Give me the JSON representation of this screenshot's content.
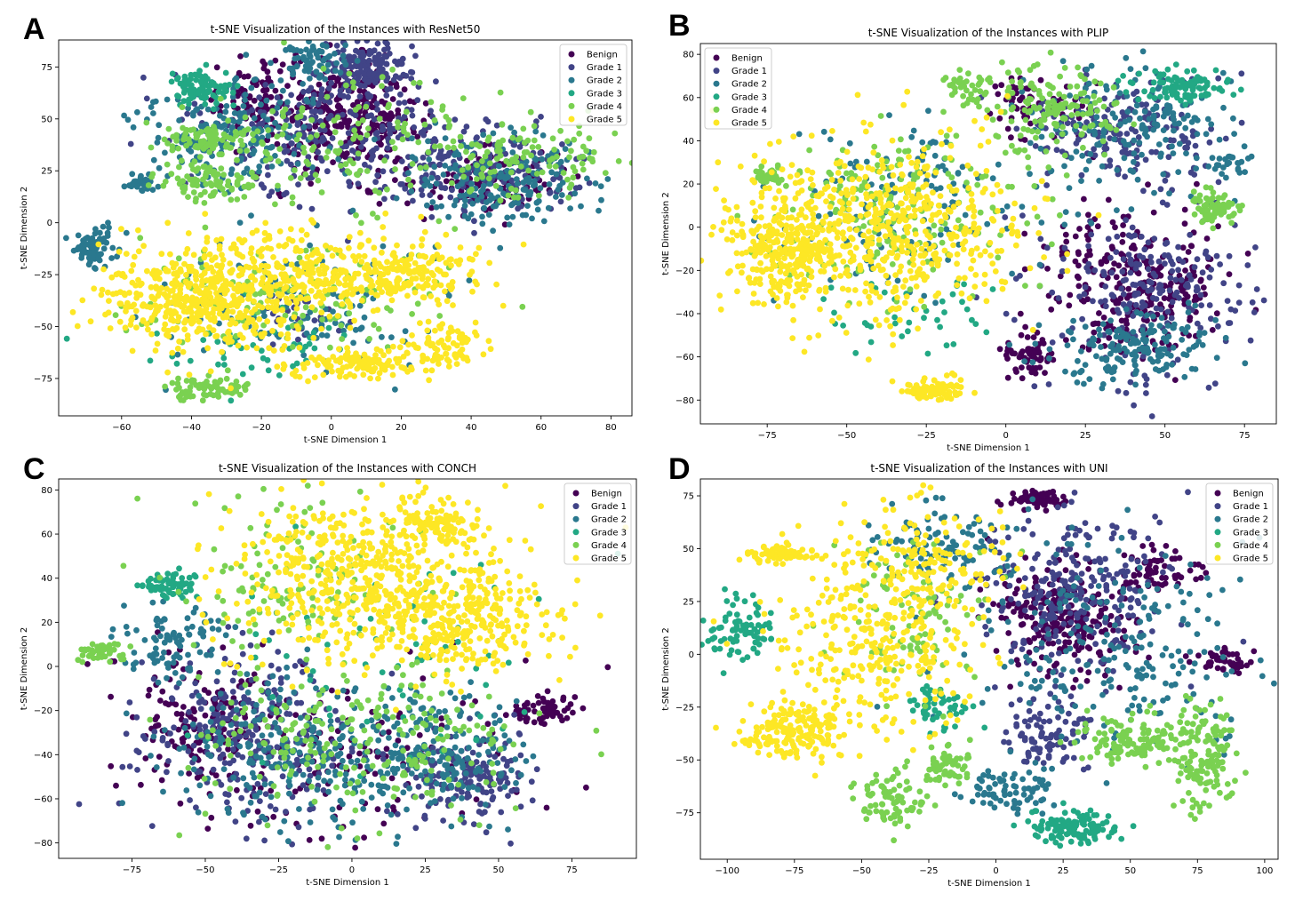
{
  "colors": {
    "Benign": "#440154",
    "Grade 1": "#414487",
    "Grade 2": "#2a788e",
    "Grade 3": "#22a884",
    "Grade 4": "#7ad151",
    "Grade 5": "#fde725"
  },
  "chart_data": [
    {
      "panel_label": "A",
      "type": "scatter",
      "title": "t-SNE Visualization of the Instances with ResNet50",
      "xlabel": "t-SNE Dimension 1",
      "ylabel": "t-SNE Dimension 2",
      "xlim": [
        -78,
        86
      ],
      "ylim": [
        -93,
        88
      ],
      "xticks": [
        -60,
        -40,
        -20,
        0,
        20,
        40,
        60,
        80
      ],
      "yticks": [
        -75,
        -50,
        -25,
        0,
        25,
        50,
        75
      ],
      "legend": [
        "Benign",
        "Grade 1",
        "Grade 2",
        "Grade 3",
        "Grade 4",
        "Grade 5"
      ],
      "legend_position": "top-right",
      "clusters": [
        {
          "series": "Benign",
          "cx": 5,
          "cy": 50,
          "sx": 10,
          "sy": 13,
          "n": 280
        },
        {
          "series": "Benign",
          "cx": -20,
          "cy": 60,
          "sx": 8,
          "sy": 10,
          "n": 90
        },
        {
          "series": "Benign",
          "cx": 45,
          "cy": 20,
          "sx": 10,
          "sy": 8,
          "n": 100
        },
        {
          "series": "Grade 1",
          "cx": 10,
          "cy": 75,
          "sx": 6,
          "sy": 6,
          "n": 150
        },
        {
          "series": "Grade 1",
          "cx": 0,
          "cy": 45,
          "sx": 18,
          "sy": 16,
          "n": 260
        },
        {
          "series": "Grade 1",
          "cx": 45,
          "cy": 25,
          "sx": 14,
          "sy": 10,
          "n": 180
        },
        {
          "series": "Grade 1",
          "cx": -10,
          "cy": -45,
          "sx": 6,
          "sy": 6,
          "n": 30
        },
        {
          "series": "Grade 2",
          "cx": -30,
          "cy": 45,
          "sx": 14,
          "sy": 14,
          "n": 200
        },
        {
          "series": "Grade 2",
          "cx": 50,
          "cy": 20,
          "sx": 14,
          "sy": 12,
          "n": 200
        },
        {
          "series": "Grade 2",
          "cx": -68,
          "cy": -12,
          "sx": 3,
          "sy": 5,
          "n": 70
        },
        {
          "series": "Grade 2",
          "cx": -5,
          "cy": 78,
          "sx": 5,
          "sy": 4,
          "n": 70
        },
        {
          "series": "Grade 2",
          "cx": -55,
          "cy": 19,
          "sx": 2,
          "sy": 2,
          "n": 25
        },
        {
          "series": "Grade 2",
          "cx": -10,
          "cy": -40,
          "sx": 20,
          "sy": 15,
          "n": 120
        },
        {
          "series": "Grade 3",
          "cx": -38,
          "cy": 65,
          "sx": 4,
          "sy": 4,
          "n": 90
        },
        {
          "series": "Grade 3",
          "cx": -20,
          "cy": -60,
          "sx": 15,
          "sy": 8,
          "n": 50
        },
        {
          "series": "Grade 4",
          "cx": -35,
          "cy": 40,
          "sx": 7,
          "sy": 4,
          "n": 90
        },
        {
          "series": "Grade 4",
          "cx": -35,
          "cy": 20,
          "sx": 8,
          "sy": 4,
          "n": 90
        },
        {
          "series": "Grade 4",
          "cx": 55,
          "cy": 30,
          "sx": 14,
          "sy": 10,
          "n": 120
        },
        {
          "series": "Grade 4",
          "cx": -35,
          "cy": -80,
          "sx": 6,
          "sy": 3,
          "n": 70
        },
        {
          "series": "Grade 4",
          "cx": 0,
          "cy": 40,
          "sx": 20,
          "sy": 15,
          "n": 130
        },
        {
          "series": "Grade 4",
          "cx": -10,
          "cy": -35,
          "sx": 22,
          "sy": 14,
          "n": 120
        },
        {
          "series": "Grade 5",
          "cx": -35,
          "cy": -35,
          "sx": 15,
          "sy": 13,
          "n": 520
        },
        {
          "series": "Grade 5",
          "cx": 0,
          "cy": -25,
          "sx": 18,
          "sy": 10,
          "n": 260
        },
        {
          "series": "Grade 5",
          "cx": 25,
          "cy": -25,
          "sx": 8,
          "sy": 6,
          "n": 110
        },
        {
          "series": "Grade 5",
          "cx": 10,
          "cy": -68,
          "sx": 10,
          "sy": 4,
          "n": 130
        },
        {
          "series": "Grade 5",
          "cx": 33,
          "cy": -60,
          "sx": 6,
          "sy": 5,
          "n": 80
        }
      ]
    },
    {
      "panel_label": "B",
      "type": "scatter",
      "title": "t-SNE Visualization of the Instances with PLIP",
      "xlabel": "t-SNE Dimension 1",
      "ylabel": "t-SNE Dimension 2",
      "xlim": [
        -96,
        85
      ],
      "ylim": [
        -91,
        85
      ],
      "xticks": [
        -75,
        -50,
        -25,
        0,
        25,
        50,
        75
      ],
      "yticks": [
        -80,
        -60,
        -40,
        -20,
        0,
        20,
        40,
        60,
        80
      ],
      "legend": [
        "Benign",
        "Grade 1",
        "Grade 2",
        "Grade 3",
        "Grade 4",
        "Grade 5"
      ],
      "legend_position": "top-left",
      "clusters": [
        {
          "series": "Benign",
          "cx": 40,
          "cy": -25,
          "sx": 14,
          "sy": 18,
          "n": 280
        },
        {
          "series": "Benign",
          "cx": 8,
          "cy": -60,
          "sx": 4,
          "sy": 5,
          "n": 60
        },
        {
          "series": "Benign",
          "cx": 10,
          "cy": 55,
          "sx": 8,
          "sy": 8,
          "n": 60
        },
        {
          "series": "Grade 1",
          "cx": 45,
          "cy": -30,
          "sx": 16,
          "sy": 20,
          "n": 230
        },
        {
          "series": "Grade 1",
          "cx": 35,
          "cy": 45,
          "sx": 14,
          "sy": 12,
          "n": 180
        },
        {
          "series": "Grade 2",
          "cx": 40,
          "cy": -55,
          "sx": 15,
          "sy": 8,
          "n": 170
        },
        {
          "series": "Grade 2",
          "cx": 40,
          "cy": 45,
          "sx": 16,
          "sy": 14,
          "n": 180
        },
        {
          "series": "Grade 2",
          "cx": -30,
          "cy": 10,
          "sx": 20,
          "sy": 20,
          "n": 150
        },
        {
          "series": "Grade 2",
          "cx": 70,
          "cy": 27,
          "sx": 3,
          "sy": 3,
          "n": 25
        },
        {
          "series": "Grade 3",
          "cx": 55,
          "cy": 65,
          "sx": 8,
          "sy": 4,
          "n": 100
        },
        {
          "series": "Grade 3",
          "cx": -30,
          "cy": -40,
          "sx": 15,
          "sy": 10,
          "n": 40
        },
        {
          "series": "Grade 4",
          "cx": 15,
          "cy": 55,
          "sx": 10,
          "sy": 10,
          "n": 150
        },
        {
          "series": "Grade 4",
          "cx": -12,
          "cy": 65,
          "sx": 4,
          "sy": 4,
          "n": 40
        },
        {
          "series": "Grade 4",
          "cx": 65,
          "cy": 10,
          "sx": 4,
          "sy": 4,
          "n": 70
        },
        {
          "series": "Grade 4",
          "cx": -75,
          "cy": 23,
          "sx": 3,
          "sy": 2,
          "n": 40
        },
        {
          "series": "Grade 4",
          "cx": -35,
          "cy": 10,
          "sx": 20,
          "sy": 20,
          "n": 200
        },
        {
          "series": "Grade 5",
          "cx": -40,
          "cy": 0,
          "sx": 22,
          "sy": 20,
          "n": 600
        },
        {
          "series": "Grade 5",
          "cx": -70,
          "cy": -10,
          "sx": 8,
          "sy": 12,
          "n": 220
        },
        {
          "series": "Grade 5",
          "cx": -22,
          "cy": -75,
          "sx": 5,
          "sy": 3,
          "n": 80
        }
      ]
    },
    {
      "panel_label": "C",
      "type": "scatter",
      "title": "t-SNE Visualization of the Instances with CONCH",
      "xlabel": "t-SNE Dimension 1",
      "ylabel": "t-SNE Dimension 2",
      "xlim": [
        -100,
        97
      ],
      "ylim": [
        -87,
        85
      ],
      "xticks": [
        -75,
        -50,
        -25,
        0,
        25,
        50,
        75
      ],
      "yticks": [
        -80,
        -60,
        -40,
        -20,
        0,
        20,
        40,
        60,
        80
      ],
      "legend": [
        "Benign",
        "Grade 1",
        "Grade 2",
        "Grade 3",
        "Grade 4",
        "Grade 5"
      ],
      "legend_position": "top-right",
      "clusters": [
        {
          "series": "Benign",
          "cx": -50,
          "cy": -25,
          "sx": 14,
          "sy": 15,
          "n": 160
        },
        {
          "series": "Benign",
          "cx": 65,
          "cy": -20,
          "sx": 6,
          "sy": 4,
          "n": 60
        },
        {
          "series": "Benign",
          "cx": 0,
          "cy": -45,
          "sx": 30,
          "sy": 20,
          "n": 130
        },
        {
          "series": "Grade 1",
          "cx": -35,
          "cy": -30,
          "sx": 18,
          "sy": 18,
          "n": 280
        },
        {
          "series": "Grade 1",
          "cx": 40,
          "cy": -50,
          "sx": 10,
          "sy": 10,
          "n": 160
        },
        {
          "series": "Grade 2",
          "cx": -20,
          "cy": -40,
          "sx": 22,
          "sy": 18,
          "n": 230
        },
        {
          "series": "Grade 2",
          "cx": 30,
          "cy": -40,
          "sx": 16,
          "sy": 15,
          "n": 200
        },
        {
          "series": "Grade 2",
          "cx": -60,
          "cy": 10,
          "sx": 10,
          "sy": 8,
          "n": 90
        },
        {
          "series": "Grade 3",
          "cx": -62,
          "cy": 37,
          "sx": 5,
          "sy": 3,
          "n": 70
        },
        {
          "series": "Grade 3",
          "cx": 10,
          "cy": 0,
          "sx": 30,
          "sy": 25,
          "n": 70
        },
        {
          "series": "Grade 4",
          "cx": -85,
          "cy": 7,
          "sx": 4,
          "sy": 2,
          "n": 50
        },
        {
          "series": "Grade 4",
          "cx": 0,
          "cy": -35,
          "sx": 30,
          "sy": 18,
          "n": 230
        },
        {
          "series": "Grade 4",
          "cx": -20,
          "cy": 40,
          "sx": 20,
          "sy": 20,
          "n": 130
        },
        {
          "series": "Grade 5",
          "cx": 5,
          "cy": 40,
          "sx": 22,
          "sy": 18,
          "n": 560
        },
        {
          "series": "Grade 5",
          "cx": 40,
          "cy": 20,
          "sx": 14,
          "sy": 12,
          "n": 250
        },
        {
          "series": "Grade 5",
          "cx": 30,
          "cy": 63,
          "sx": 8,
          "sy": 4,
          "n": 80
        }
      ]
    },
    {
      "panel_label": "D",
      "type": "scatter",
      "title": "t-SNE Visualization of the Instances with UNI",
      "xlabel": "t-SNE Dimension 1",
      "ylabel": "t-SNE Dimension 2",
      "xlim": [
        -110,
        105
      ],
      "ylim": [
        -97,
        83
      ],
      "xticks": [
        -100,
        -75,
        -50,
        -25,
        0,
        25,
        50,
        75,
        100
      ],
      "yticks": [
        -75,
        -50,
        -25,
        0,
        25,
        50,
        75
      ],
      "legend": [
        "Benign",
        "Grade 1",
        "Grade 2",
        "Grade 3",
        "Grade 4",
        "Grade 5"
      ],
      "legend_position": "top-right",
      "clusters": [
        {
          "series": "Benign",
          "cx": 15,
          "cy": 73,
          "sx": 5,
          "sy": 2,
          "n": 70
        },
        {
          "series": "Benign",
          "cx": 25,
          "cy": 15,
          "sx": 12,
          "sy": 12,
          "n": 260
        },
        {
          "series": "Benign",
          "cx": 85,
          "cy": -3,
          "sx": 5,
          "sy": 3,
          "n": 50
        },
        {
          "series": "Benign",
          "cx": 60,
          "cy": 40,
          "sx": 8,
          "sy": 5,
          "n": 60
        },
        {
          "series": "Grade 1",
          "cx": 30,
          "cy": 30,
          "sx": 18,
          "sy": 20,
          "n": 260
        },
        {
          "series": "Grade 1",
          "cx": 20,
          "cy": -40,
          "sx": 8,
          "sy": 10,
          "n": 90
        },
        {
          "series": "Grade 2",
          "cx": 45,
          "cy": 0,
          "sx": 25,
          "sy": 25,
          "n": 230
        },
        {
          "series": "Grade 2",
          "cx": -20,
          "cy": 50,
          "sx": 15,
          "sy": 10,
          "n": 110
        },
        {
          "series": "Grade 2",
          "cx": 5,
          "cy": -65,
          "sx": 8,
          "sy": 5,
          "n": 70
        },
        {
          "series": "Grade 3",
          "cx": 30,
          "cy": -82,
          "sx": 8,
          "sy": 4,
          "n": 120
        },
        {
          "series": "Grade 3",
          "cx": -95,
          "cy": 10,
          "sx": 6,
          "sy": 8,
          "n": 80
        },
        {
          "series": "Grade 3",
          "cx": -20,
          "cy": -25,
          "sx": 6,
          "sy": 6,
          "n": 50
        },
        {
          "series": "Grade 4",
          "cx": 50,
          "cy": -40,
          "sx": 10,
          "sy": 6,
          "n": 130
        },
        {
          "series": "Grade 4",
          "cx": 78,
          "cy": -50,
          "sx": 6,
          "sy": 12,
          "n": 130
        },
        {
          "series": "Grade 4",
          "cx": -40,
          "cy": -68,
          "sx": 6,
          "sy": 8,
          "n": 80
        },
        {
          "series": "Grade 4",
          "cx": -18,
          "cy": -52,
          "sx": 4,
          "sy": 5,
          "n": 60
        },
        {
          "series": "Grade 4",
          "cx": -30,
          "cy": 20,
          "sx": 15,
          "sy": 20,
          "n": 100
        },
        {
          "series": "Grade 5",
          "cx": -80,
          "cy": 47,
          "sx": 6,
          "sy": 2,
          "n": 70
        },
        {
          "series": "Grade 5",
          "cx": -45,
          "cy": 10,
          "sx": 18,
          "sy": 25,
          "n": 330
        },
        {
          "series": "Grade 5",
          "cx": -75,
          "cy": -35,
          "sx": 10,
          "sy": 6,
          "n": 180
        },
        {
          "series": "Grade 5",
          "cx": -20,
          "cy": 40,
          "sx": 15,
          "sy": 15,
          "n": 110
        }
      ]
    }
  ]
}
